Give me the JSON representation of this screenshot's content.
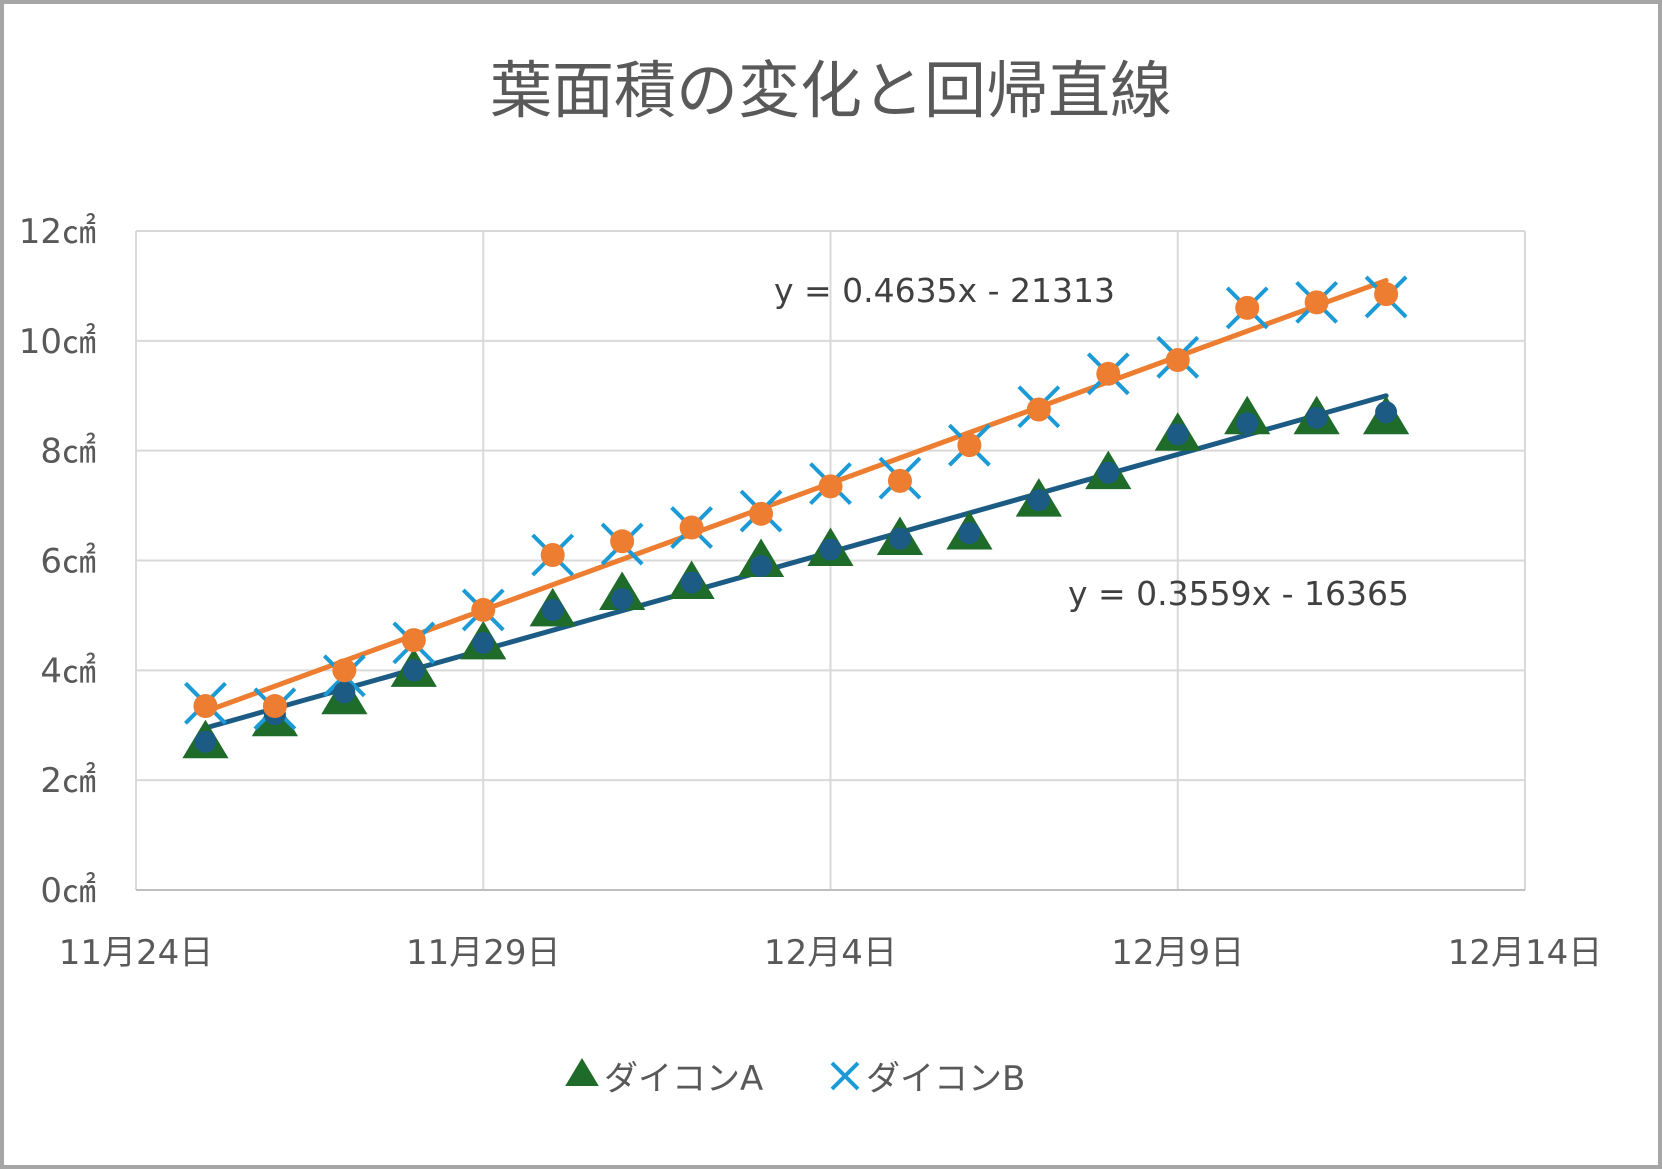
{
  "chart_data": {
    "type": "scatter",
    "title": "葉面積の変化と回帰直線",
    "x_type": "date",
    "x_range": [
      "2024-11-24",
      "2024-12-14"
    ],
    "x_ticks": [
      {
        "date": "2024-11-24",
        "label": "11月24日"
      },
      {
        "date": "2024-11-29",
        "label": "11月29日"
      },
      {
        "date": "2024-12-04",
        "label": "12月4日"
      },
      {
        "date": "2024-12-09",
        "label": "12月9日"
      },
      {
        "date": "2024-12-14",
        "label": "12月14日"
      }
    ],
    "ylim": [
      0,
      12
    ],
    "y_ticks": [
      {
        "value": 0,
        "label": "0㎠"
      },
      {
        "value": 2,
        "label": "2㎠"
      },
      {
        "value": 4,
        "label": "4㎠"
      },
      {
        "value": 6,
        "label": "6㎠"
      },
      {
        "value": 8,
        "label": "8㎠"
      },
      {
        "value": 10,
        "label": "10㎠"
      },
      {
        "value": 12,
        "label": "12㎠"
      }
    ],
    "grid": true,
    "legend_position": "bottom",
    "series": [
      {
        "name": "ダイコンA",
        "marker": "triangle",
        "color": "#1e6b2a",
        "x": [
          "2024-11-25",
          "2024-11-26",
          "2024-11-27",
          "2024-11-28",
          "2024-11-29",
          "2024-11-30",
          "2024-12-01",
          "2024-12-02",
          "2024-12-03",
          "2024-12-04",
          "2024-12-05",
          "2024-12-06",
          "2024-12-07",
          "2024-12-08",
          "2024-12-09",
          "2024-12-10",
          "2024-12-11",
          "2024-12-12"
        ],
        "y": [
          2.7,
          3.1,
          3.5,
          4.0,
          4.5,
          5.1,
          5.4,
          5.6,
          6.0,
          6.2,
          6.4,
          6.5,
          7.1,
          7.6,
          8.3,
          8.6,
          8.6,
          8.6
        ]
      },
      {
        "name": "ダイコンB",
        "marker": "x",
        "color": "#1b9ad6",
        "x": [
          "2024-11-25",
          "2024-11-26",
          "2024-11-27",
          "2024-11-28",
          "2024-11-29",
          "2024-11-30",
          "2024-12-01",
          "2024-12-02",
          "2024-12-03",
          "2024-12-04",
          "2024-12-05",
          "2024-12-06",
          "2024-12-07",
          "2024-12-08",
          "2024-12-09",
          "2024-12-10",
          "2024-12-11",
          "2024-12-12"
        ],
        "y": [
          3.4,
          3.3,
          3.9,
          4.5,
          5.1,
          6.1,
          6.3,
          6.6,
          6.9,
          7.4,
          7.5,
          8.1,
          8.8,
          9.4,
          9.7,
          10.6,
          10.7,
          10.8
        ]
      }
    ],
    "overlay_series": [
      {
        "of": "ダイコンA",
        "marker": "circle",
        "color": "#1c5b84",
        "y": [
          2.7,
          3.2,
          3.6,
          4.0,
          4.5,
          5.1,
          5.3,
          5.6,
          5.9,
          6.2,
          6.4,
          6.5,
          7.1,
          7.6,
          8.3,
          8.5,
          8.6,
          8.7
        ]
      },
      {
        "of": "ダイコンB",
        "marker": "circle",
        "color": "#ed7d31",
        "y": [
          3.35,
          3.35,
          4.0,
          4.55,
          5.1,
          6.1,
          6.35,
          6.6,
          6.85,
          7.35,
          7.45,
          8.1,
          8.75,
          9.4,
          9.65,
          10.6,
          10.7,
          10.85
        ]
      }
    ],
    "trendlines": [
      {
        "series": "ダイコンA",
        "color": "#1c5b84",
        "equation": "y = 0.3559x - 16365",
        "from": {
          "date": "2024-11-25",
          "y": 2.95
        },
        "to": {
          "date": "2024-12-12",
          "y": 9.0
        }
      },
      {
        "series": "ダイコンB",
        "color": "#ed7d31",
        "equation": "y = 0.4635x - 21313",
        "from": {
          "date": "2024-11-25",
          "y": 3.25
        },
        "to": {
          "date": "2024-12-12",
          "y": 11.1
        }
      }
    ]
  }
}
